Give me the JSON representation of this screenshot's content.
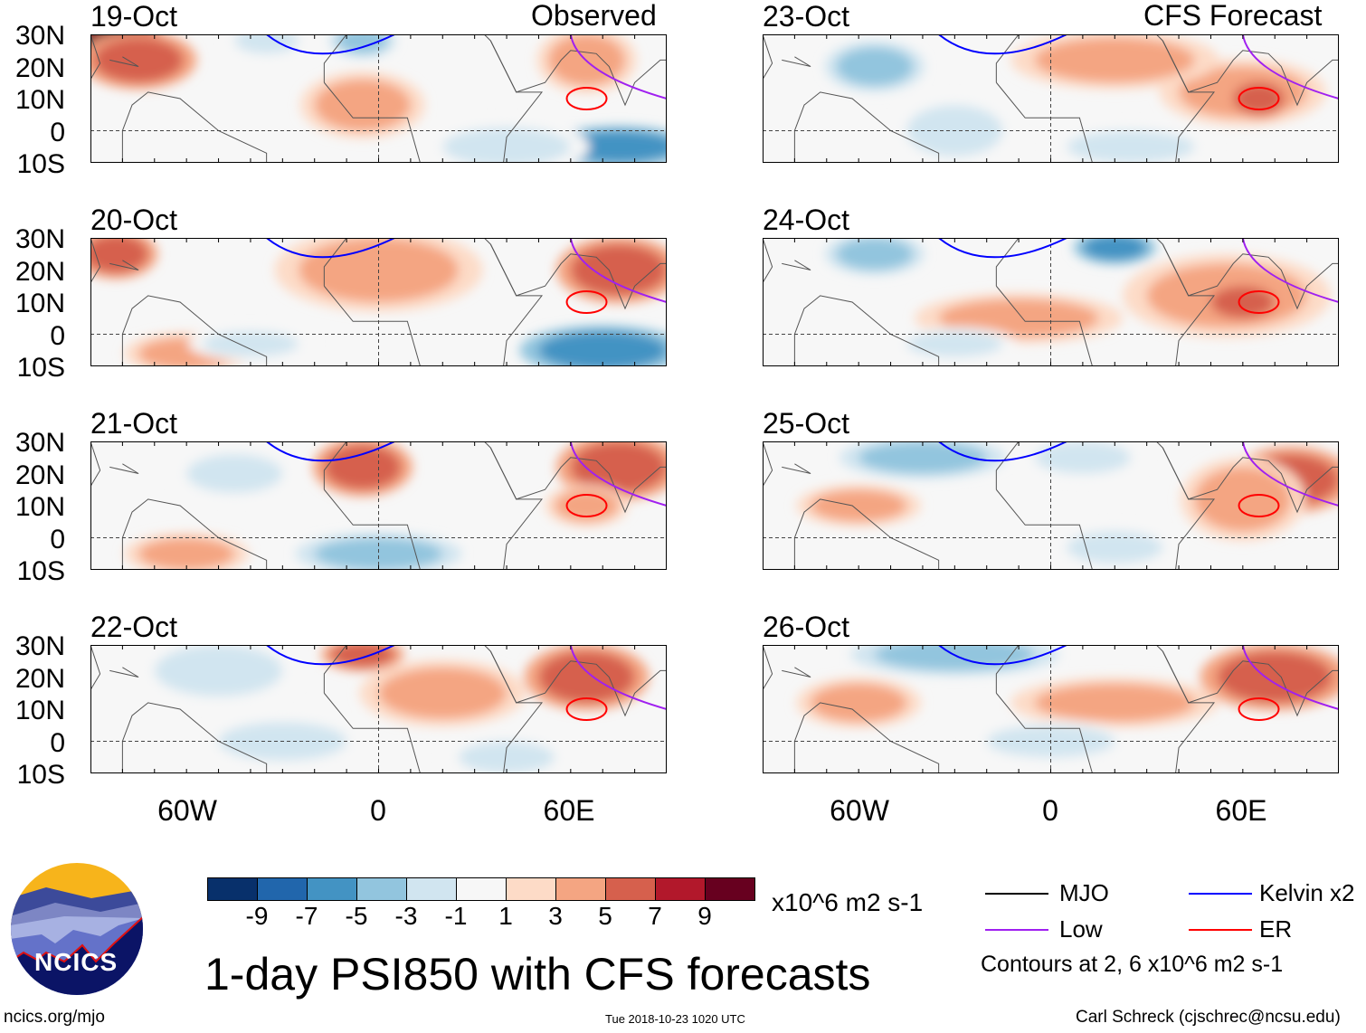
{
  "title": "1-day PSI850 with CFS forecasts",
  "header_observed": "Observed",
  "header_forecast": "CFS Forecast",
  "units": "x10^6 m2 s-1",
  "contours_note": "Contours at 2, 6 x10^6 m2 s-1",
  "footer_left": "ncics.org/mjo",
  "footer_center": "Tue 2018-10-23 1020 UTC",
  "footer_right": "Carl Schreck (cjschrec@ncsu.edu)",
  "logo_text": "NCICS",
  "legend": [
    {
      "label": "MJO",
      "color": "#000000"
    },
    {
      "label": "Kelvin x2",
      "color": "#0000ff"
    },
    {
      "label": "Low",
      "color": "#a020f0"
    },
    {
      "label": "ER",
      "color": "#ff0000"
    }
  ],
  "colorbar": {
    "colors": [
      "#08306b",
      "#2166ac",
      "#4393c3",
      "#92c5de",
      "#d1e5f0",
      "#f7f7f7",
      "#fddbc7",
      "#f4a582",
      "#d6604d",
      "#b2182b",
      "#67001f"
    ],
    "labels": [
      "-9",
      "-7",
      "-5",
      "-3",
      "-1",
      "1",
      "3",
      "5",
      "7",
      "9"
    ]
  },
  "chart_data": {
    "type": "map",
    "variable": "PSI850 anomaly",
    "lon_range": [
      -90,
      90
    ],
    "lat_range": [
      -10,
      30
    ],
    "lat_ticks": [
      "30N",
      "20N",
      "10N",
      "0",
      "10S"
    ],
    "lon_ticks": [
      {
        "lon": -60,
        "label": "60W"
      },
      {
        "lon": 0,
        "label": "0"
      },
      {
        "lon": 60,
        "label": "60E"
      }
    ],
    "panels": [
      {
        "date": "19-Oct",
        "type": "observed",
        "features": [
          [
            -82,
            27,
            12,
            6,
            9
          ],
          [
            -75,
            22,
            14,
            7,
            5
          ],
          [
            -5,
            8,
            15,
            8,
            3
          ],
          [
            65,
            22,
            12,
            8,
            3
          ],
          [
            75,
            -5,
            18,
            5,
            -7
          ],
          [
            -35,
            28,
            10,
            4,
            -3
          ],
          [
            -5,
            28,
            8,
            4,
            -5
          ],
          [
            40,
            -5,
            20,
            6,
            -3
          ]
        ]
      },
      {
        "date": "20-Oct",
        "type": "observed",
        "features": [
          [
            -82,
            25,
            10,
            6,
            5
          ],
          [
            0,
            20,
            25,
            10,
            3
          ],
          [
            75,
            20,
            15,
            8,
            5
          ],
          [
            70,
            -5,
            20,
            6,
            -7
          ],
          [
            -60,
            -6,
            15,
            5,
            3
          ],
          [
            -40,
            -3,
            15,
            4,
            -3
          ]
        ]
      },
      {
        "date": "21-Oct",
        "type": "observed",
        "features": [
          [
            -5,
            22,
            12,
            7,
            5
          ],
          [
            75,
            22,
            15,
            8,
            5
          ],
          [
            65,
            10,
            10,
            5,
            3
          ],
          [
            0,
            -5,
            20,
            5,
            -5
          ],
          [
            -45,
            20,
            15,
            6,
            -3
          ],
          [
            -60,
            -5,
            15,
            5,
            3
          ]
        ]
      },
      {
        "date": "22-Oct",
        "type": "observed",
        "features": [
          [
            -5,
            27,
            10,
            4,
            5
          ],
          [
            65,
            20,
            15,
            8,
            5
          ],
          [
            -50,
            22,
            20,
            8,
            -3
          ],
          [
            -30,
            0,
            20,
            6,
            -3
          ],
          [
            40,
            -5,
            15,
            5,
            -3
          ],
          [
            20,
            15,
            20,
            8,
            3
          ]
        ]
      },
      {
        "date": "23-Oct",
        "type": "forecast",
        "features": [
          [
            -55,
            20,
            12,
            6,
            -5
          ],
          [
            -30,
            0,
            15,
            8,
            -3
          ],
          [
            60,
            12,
            20,
            8,
            3
          ],
          [
            65,
            10,
            8,
            5,
            5
          ],
          [
            20,
            22,
            25,
            7,
            3
          ],
          [
            25,
            -5,
            20,
            5,
            -3
          ]
        ]
      },
      {
        "date": "24-Oct",
        "type": "forecast",
        "features": [
          [
            -55,
            25,
            12,
            5,
            -5
          ],
          [
            20,
            27,
            10,
            4,
            -7
          ],
          [
            55,
            12,
            25,
            10,
            3
          ],
          [
            60,
            10,
            10,
            5,
            5
          ],
          [
            -10,
            5,
            25,
            6,
            3
          ],
          [
            -30,
            -3,
            15,
            4,
            -3
          ]
        ]
      },
      {
        "date": "25-Oct",
        "type": "forecast",
        "features": [
          [
            -40,
            25,
            20,
            5,
            -5
          ],
          [
            75,
            18,
            15,
            8,
            5
          ],
          [
            60,
            12,
            15,
            10,
            3
          ],
          [
            -60,
            10,
            15,
            5,
            3
          ],
          [
            20,
            -3,
            15,
            5,
            -3
          ],
          [
            10,
            25,
            15,
            5,
            -3
          ]
        ]
      },
      {
        "date": "26-Oct",
        "type": "forecast",
        "features": [
          [
            -30,
            27,
            25,
            5,
            -5
          ],
          [
            70,
            20,
            18,
            8,
            5
          ],
          [
            -60,
            12,
            15,
            6,
            3
          ],
          [
            20,
            12,
            25,
            6,
            3
          ],
          [
            0,
            0,
            20,
            5,
            -3
          ]
        ]
      }
    ]
  }
}
